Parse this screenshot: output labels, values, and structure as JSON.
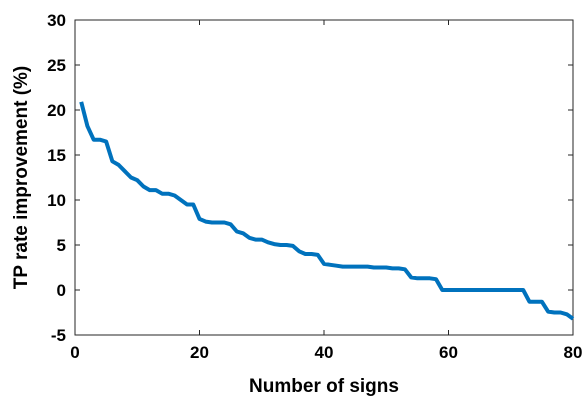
{
  "chart_data": {
    "type": "line",
    "title": "",
    "xlabel": "Number of signs",
    "ylabel": "TP rate improvement (%)",
    "xlim": [
      0,
      80
    ],
    "ylim": [
      -5,
      30
    ],
    "xticks": [
      0,
      20,
      40,
      60,
      80
    ],
    "yticks": [
      -5,
      0,
      5,
      10,
      15,
      20,
      25,
      30
    ],
    "grid": false,
    "legend": "none",
    "series": [
      {
        "color": "#0072BD",
        "x": [
          1,
          2,
          3,
          4,
          5,
          6,
          7,
          8,
          9,
          10,
          11,
          12,
          13,
          14,
          15,
          16,
          17,
          18,
          19,
          20,
          21,
          22,
          23,
          24,
          25,
          26,
          27,
          28,
          29,
          30,
          31,
          32,
          33,
          34,
          35,
          36,
          37,
          38,
          39,
          40,
          41,
          42,
          43,
          44,
          45,
          46,
          47,
          48,
          49,
          50,
          51,
          52,
          53,
          54,
          55,
          56,
          57,
          58,
          59,
          60,
          61,
          62,
          63,
          64,
          65,
          66,
          67,
          68,
          69,
          70,
          71,
          72,
          73,
          74,
          75,
          76,
          77,
          78,
          79,
          80
        ],
        "y": [
          20.9,
          18.2,
          16.7,
          16.7,
          16.5,
          14.3,
          13.9,
          13.2,
          12.5,
          12.2,
          11.5,
          11.1,
          11.1,
          10.7,
          10.7,
          10.5,
          10.0,
          9.5,
          9.5,
          7.9,
          7.6,
          7.5,
          7.5,
          7.5,
          7.3,
          6.5,
          6.3,
          5.8,
          5.6,
          5.6,
          5.3,
          5.1,
          5.0,
          5.0,
          4.9,
          4.3,
          4.0,
          4.0,
          3.9,
          2.9,
          2.8,
          2.7,
          2.6,
          2.6,
          2.6,
          2.6,
          2.6,
          2.5,
          2.5,
          2.5,
          2.4,
          2.4,
          2.3,
          1.4,
          1.3,
          1.3,
          1.3,
          1.2,
          0.0,
          0.0,
          0.0,
          0.0,
          0.0,
          0.0,
          0.0,
          0.0,
          0.0,
          0.0,
          0.0,
          0.0,
          0.0,
          0.0,
          -1.3,
          -1.3,
          -1.3,
          -2.4,
          -2.5,
          -2.5,
          -2.7,
          -3.2
        ]
      }
    ]
  }
}
